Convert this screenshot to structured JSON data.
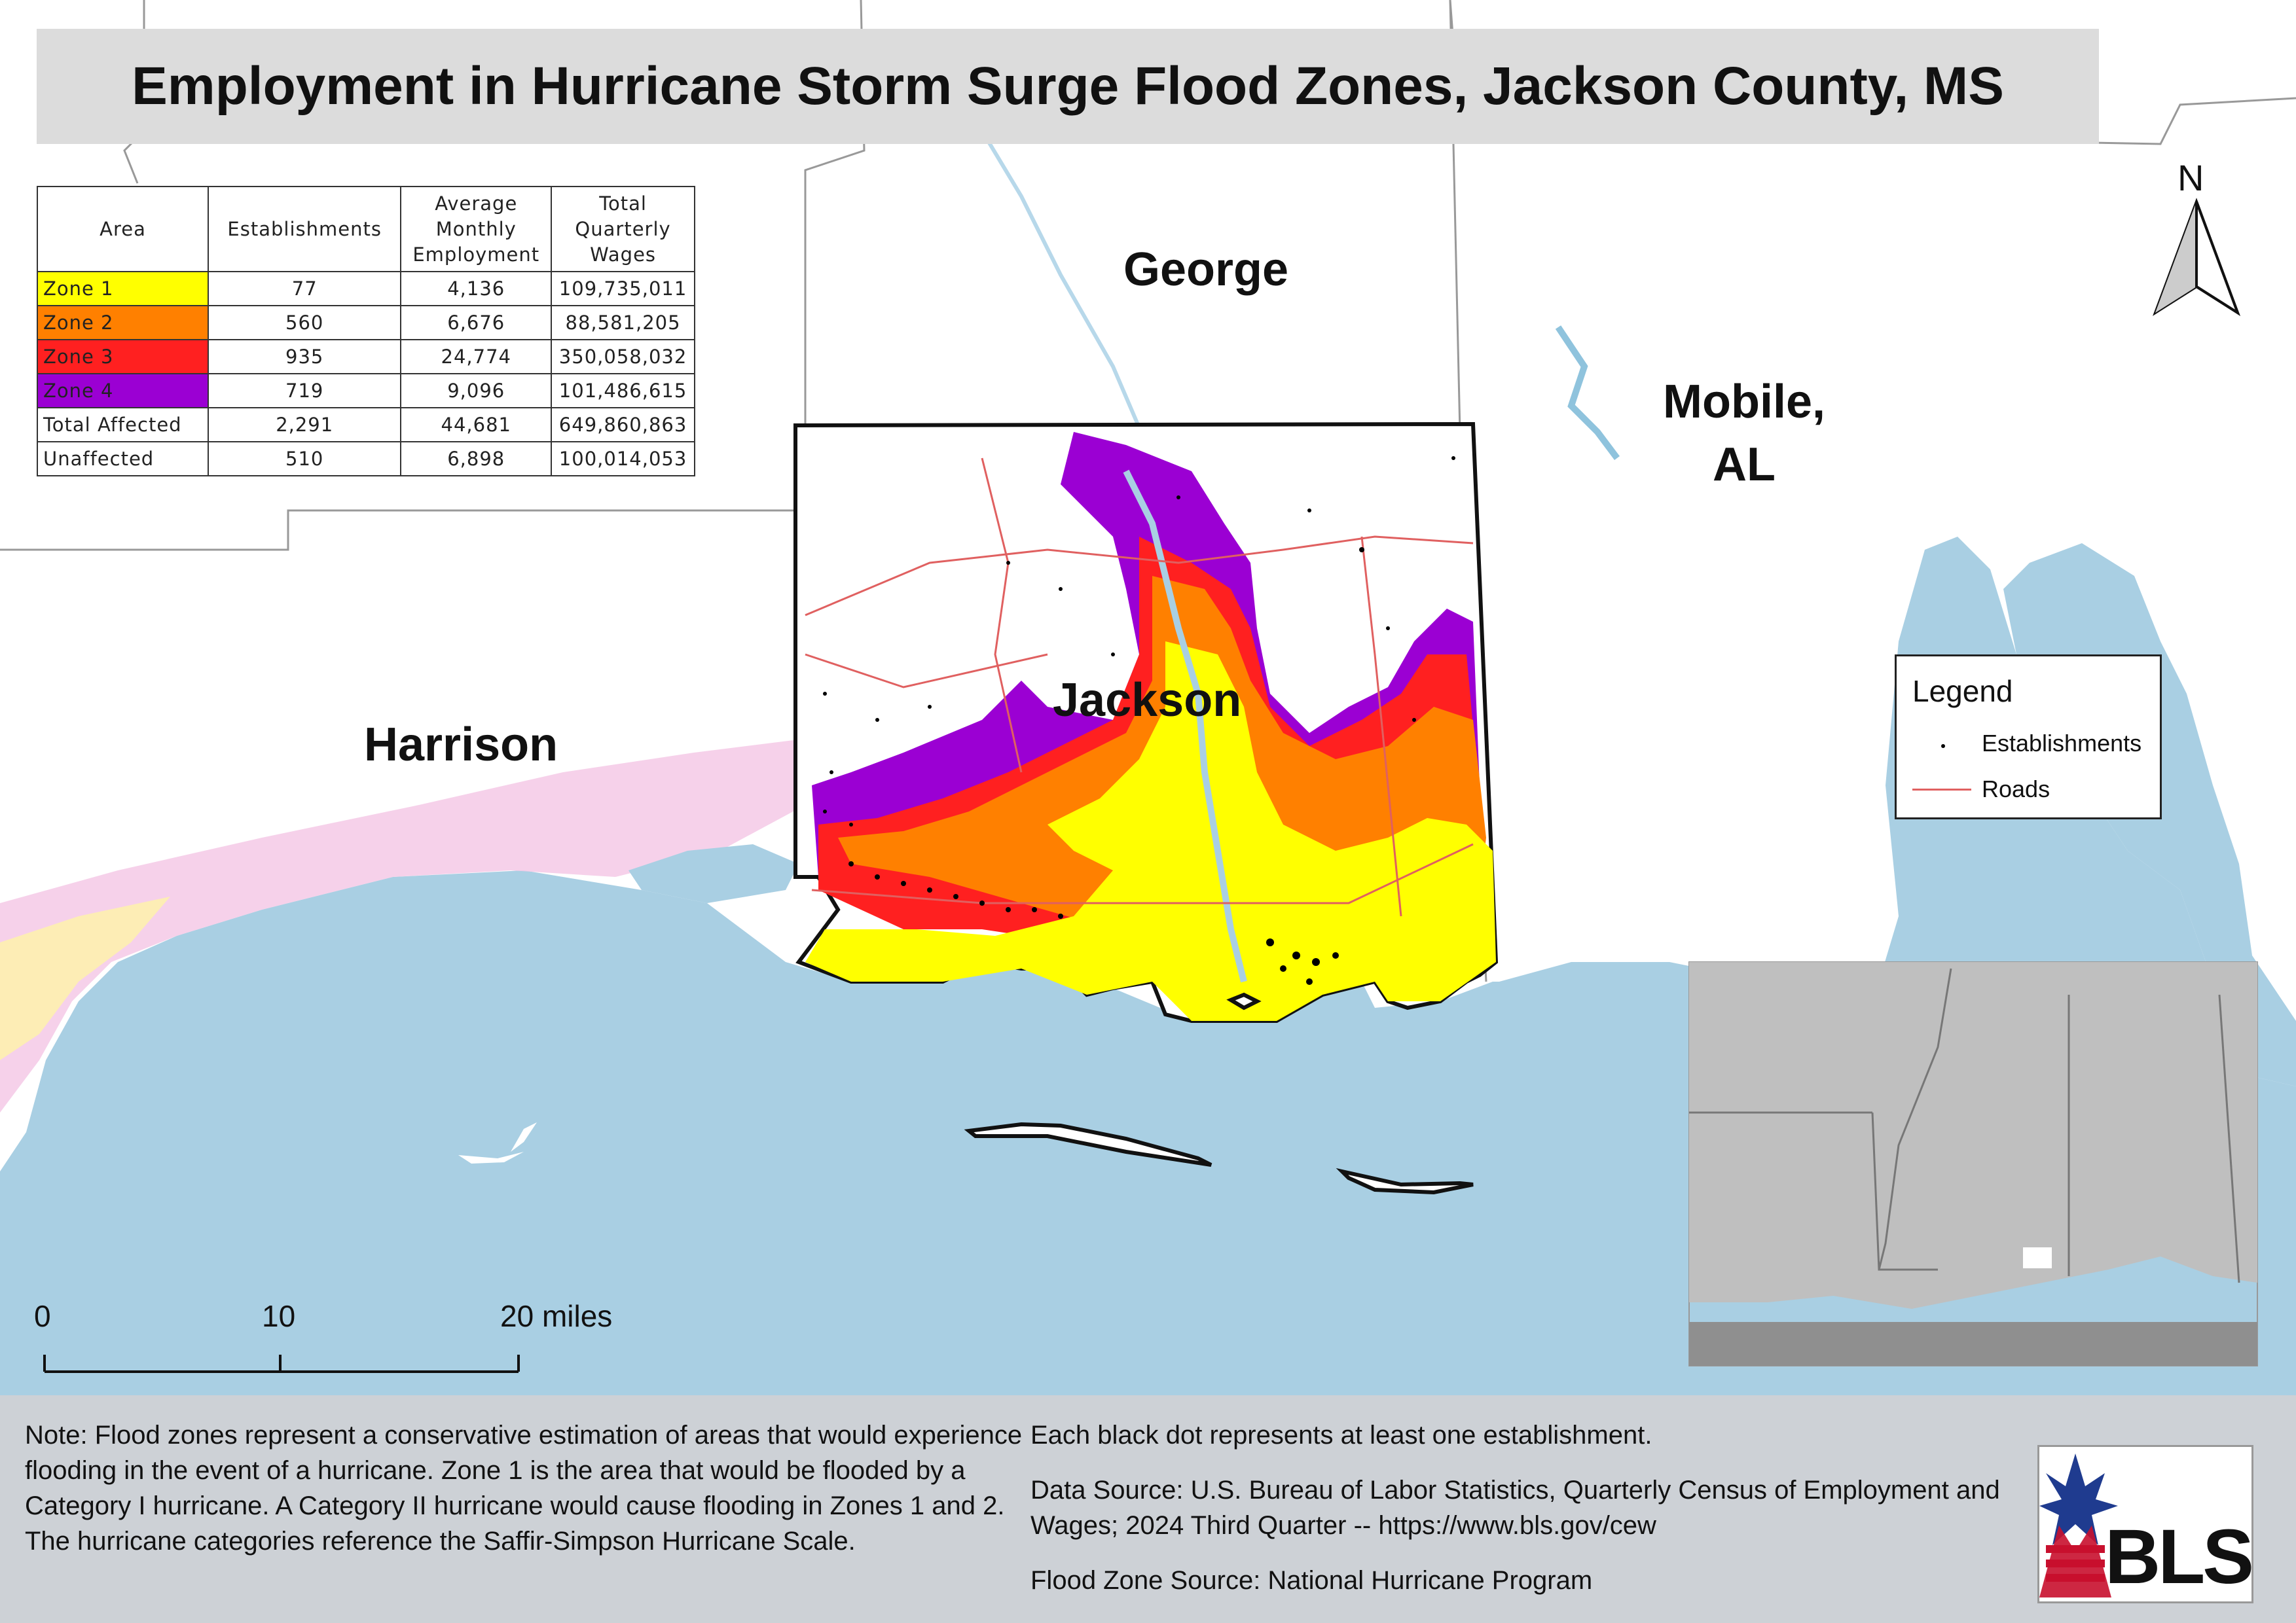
{
  "title": "Employment in Hurricane Storm Surge Flood Zones, Jackson County, MS",
  "table": {
    "headers": [
      "Area",
      "Establishments",
      "Average Monthly Employment",
      "Total Quarterly Wages"
    ],
    "rows": [
      {
        "area": "Zone 1",
        "establishments": "77",
        "employment": "4,136",
        "wages": "109,735,011",
        "color": "#ffff00"
      },
      {
        "area": "Zone 2",
        "establishments": "560",
        "employment": "6,676",
        "wages": "88,581,205",
        "color": "#ff8000"
      },
      {
        "area": "Zone 3",
        "establishments": "935",
        "employment": "24,774",
        "wages": "350,058,032",
        "color": "#ff2020"
      },
      {
        "area": "Zone 4",
        "establishments": "719",
        "employment": "9,096",
        "wages": "101,486,615",
        "color": "#9b00d3"
      },
      {
        "area": "Total Affected",
        "establishments": "2,291",
        "employment": "44,681",
        "wages": "649,860,863",
        "color": "#ffffff"
      },
      {
        "area": "Unaffected",
        "establishments": "510",
        "employment": "6,898",
        "wages": "100,014,053",
        "color": "#ffffff"
      }
    ]
  },
  "places": {
    "george": "George",
    "mobile": "Mobile,",
    "mobile_state": "AL",
    "harrison": "Harrison",
    "jackson": "Jackson"
  },
  "north_label": "N",
  "legend": {
    "title": "Legend",
    "establishments": "Establishments",
    "roads": "Roads"
  },
  "scale": {
    "zero": "0",
    "ten": "10",
    "twenty": "20 miles"
  },
  "footer": {
    "note": "Note: Flood zones represent a conservative estimation of areas that would experience flooding in the event of a hurricane. Zone 1 is the area that would be flooded by a Category I hurricane. A Category II hurricane would cause flooding in Zones 1 and 2. The hurricane categories reference the Saffir-Simpson Hurricane Scale.",
    "dots": "Each black dot represents at least one establishment.",
    "data_source": "Data Source: U.S. Bureau of Labor Statistics, Quarterly Census of Employment and Wages; 2024 Third Quarter -- https://www.bls.gov/cew",
    "flood_source": "Flood Zone Source: National Hurricane Program"
  },
  "logo_text": "BLS",
  "colors": {
    "water": "#a9cfe3",
    "land": "#ffffff",
    "zone1": "#ffff00",
    "zone2": "#ff8000",
    "zone3": "#ff2020",
    "zone4": "#9b00d3",
    "roads": "#e06060"
  }
}
